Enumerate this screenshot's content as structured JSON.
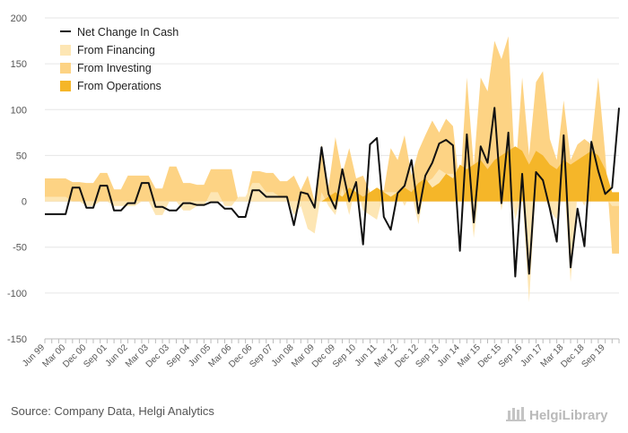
{
  "chart_data": {
    "type": "area",
    "title": "",
    "xlabel": "",
    "ylabel": "",
    "ylim": [
      -150,
      200
    ],
    "yticks": [
      -150,
      -100,
      -50,
      0,
      50,
      100,
      150,
      200
    ],
    "tick_labels": [
      "Jun 99",
      "Mar 00",
      "Dec 00",
      "Sep 01",
      "Jun 02",
      "Mar 03",
      "Dec 03",
      "Sep 04",
      "Jun 05",
      "Mar 06",
      "Dec 06",
      "Sep 07",
      "Jun 08",
      "Mar 09",
      "Dec 09",
      "Sep 10",
      "Jun 11",
      "Mar 12",
      "Dec 12",
      "Sep 13",
      "Jun 14",
      "Mar 15",
      "Dec 15",
      "Sep 16",
      "Jun 17",
      "Mar 18",
      "Dec 18",
      "Sep 19"
    ],
    "grid": true,
    "legend_position": "top-left",
    "series": [
      {
        "name": "Net Change In Cash",
        "kind": "line",
        "color": "#111111",
        "values": [
          -14,
          -14,
          -14,
          -14,
          15,
          15,
          -7,
          -7,
          17,
          17,
          -10,
          -10,
          -2,
          -2,
          20,
          20,
          -6,
          -6,
          -10,
          -10,
          -2,
          -2,
          -4,
          -4,
          -1,
          -1,
          -8,
          -8,
          -17,
          -17,
          12,
          12,
          5,
          5,
          5,
          5,
          -26,
          10,
          8,
          -7,
          59,
          8,
          -8,
          35,
          0,
          21,
          -47,
          62,
          69,
          -17,
          -31,
          9,
          17,
          45,
          -13,
          28,
          42,
          63,
          67,
          61,
          -54,
          73,
          -23,
          60,
          42,
          102,
          -2,
          75,
          -82,
          30,
          -79,
          32,
          23,
          -8,
          -44,
          72,
          -72,
          -8,
          -49,
          65,
          33,
          8,
          15,
          102
        ]
      },
      {
        "name": "From Financing",
        "kind": "area",
        "color": "#fde6b4",
        "values": [
          5,
          5,
          5,
          5,
          0,
          0,
          -5,
          -5,
          0,
          0,
          -5,
          -5,
          -5,
          -5,
          0,
          0,
          -15,
          -15,
          0,
          0,
          -10,
          -10,
          -5,
          -5,
          10,
          10,
          -5,
          -5,
          5,
          5,
          20,
          20,
          10,
          10,
          5,
          5,
          -15,
          -5,
          -30,
          -35,
          10,
          -5,
          -15,
          15,
          -15,
          20,
          -10,
          -15,
          -20,
          10,
          10,
          10,
          -5,
          10,
          -25,
          20,
          25,
          35,
          30,
          30,
          5,
          40,
          -40,
          25,
          30,
          40,
          -10,
          30,
          -20,
          10,
          -110,
          20,
          10,
          -10,
          -20,
          30,
          -88,
          10,
          -5,
          20,
          10,
          5,
          -5,
          -5
        ]
      },
      {
        "name": "From Investing",
        "kind": "area",
        "color": "#fdd384",
        "values": [
          25,
          25,
          25,
          25,
          21,
          21,
          20,
          20,
          31,
          31,
          13,
          13,
          28,
          28,
          28,
          28,
          14,
          14,
          38,
          38,
          20,
          20,
          18,
          18,
          35,
          35,
          35,
          35,
          0,
          0,
          33,
          33,
          31,
          31,
          22,
          22,
          28,
          12,
          28,
          0,
          62,
          15,
          70,
          30,
          58,
          25,
          28,
          10,
          12,
          12,
          58,
          45,
          72,
          28,
          55,
          72,
          88,
          75,
          90,
          82,
          12,
          135,
          38,
          135,
          120,
          175,
          155,
          180,
          28,
          135,
          50,
          130,
          142,
          68,
          45,
          110,
          45,
          62,
          68,
          62,
          135,
          52,
          -57,
          -57
        ]
      },
      {
        "name": "From Operations",
        "kind": "area",
        "color": "#f5b629",
        "values": [
          0,
          0,
          0,
          0,
          0,
          0,
          0,
          0,
          0,
          0,
          0,
          0,
          0,
          0,
          0,
          0,
          0,
          0,
          0,
          0,
          0,
          0,
          0,
          0,
          0,
          0,
          0,
          0,
          0,
          0,
          0,
          0,
          0,
          0,
          0,
          0,
          0,
          0,
          0,
          0,
          0,
          5,
          10,
          5,
          15,
          10,
          5,
          10,
          15,
          10,
          5,
          10,
          15,
          10,
          20,
          25,
          15,
          20,
          30,
          25,
          40,
          35,
          40,
          45,
          35,
          45,
          50,
          55,
          60,
          55,
          40,
          55,
          50,
          40,
          35,
          45,
          40,
          45,
          50,
          55,
          50,
          35,
          10,
          10
        ]
      }
    ]
  },
  "legend": {
    "net": "Net Change In Cash",
    "financing": "From Financing",
    "investing": "From Investing",
    "operations": "From Operations"
  },
  "footer": {
    "source": "Source: Company Data, Helgi Analytics",
    "brand": "HelgiLibrary"
  },
  "colors": {
    "net": "#111111",
    "financing": "#fde6b4",
    "investing": "#fdd384",
    "operations": "#f5b629",
    "grid": "#e6e6e6",
    "axis": "#bbbbbb"
  }
}
